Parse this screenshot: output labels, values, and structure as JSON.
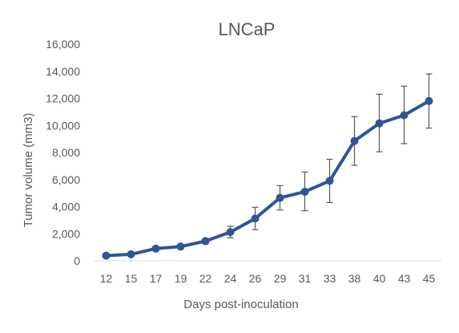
{
  "chart_data": {
    "type": "line",
    "title": "LNCaP",
    "xlabel": "Days post-inoculation",
    "ylabel": "Tumor volume (mm3)",
    "x": [
      "12",
      "15",
      "17",
      "19",
      "22",
      "24",
      "26",
      "29",
      "31",
      "33",
      "38",
      "40",
      "43",
      "45"
    ],
    "series": [
      {
        "values": [
          380,
          480,
          900,
          1050,
          1450,
          2120,
          3120,
          4650,
          5100,
          5900,
          8850,
          10150,
          10750,
          11800
        ],
        "error_low": [
          300,
          380,
          750,
          900,
          1250,
          1700,
          2300,
          3750,
          3700,
          4300,
          7050,
          8050,
          8650,
          9800
        ],
        "error_high": [
          460,
          580,
          1050,
          1200,
          1650,
          2550,
          3950,
          5550,
          6550,
          7500,
          10650,
          12300,
          12900,
          13800
        ],
        "color": "#2E5597"
      }
    ],
    "ylim": [
      0,
      16000
    ],
    "yticks": [
      "0",
      "2,000",
      "4,000",
      "6,000",
      "8,000",
      "10,000",
      "12,000",
      "14,000",
      "16,000"
    ],
    "ytick_values": [
      0,
      2000,
      4000,
      6000,
      8000,
      10000,
      12000,
      14000,
      16000
    ],
    "grid": false,
    "legend": "none",
    "error_bar_color": "#595959",
    "axis_color": "#d9d9d9",
    "text_color": "#595959"
  }
}
